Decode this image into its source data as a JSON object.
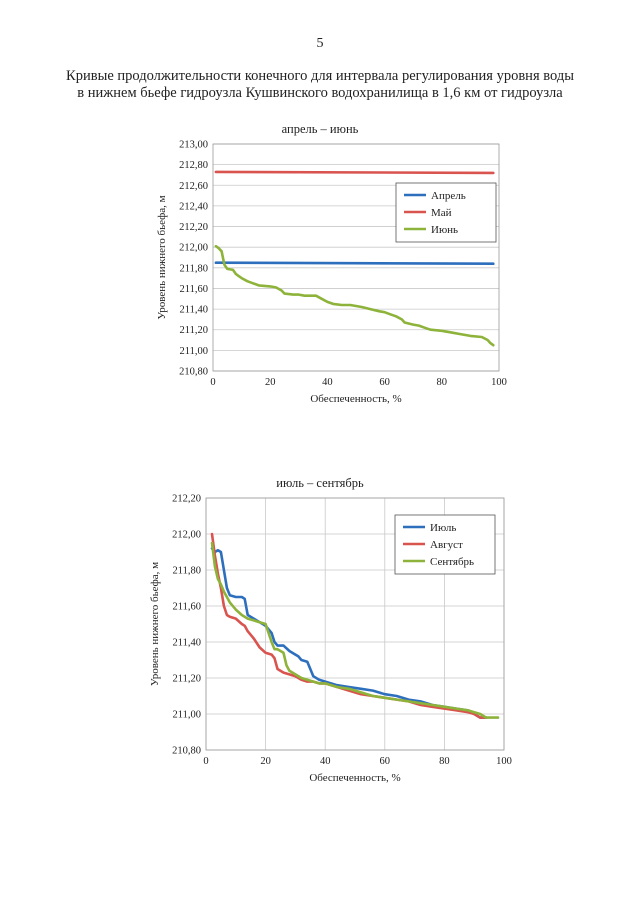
{
  "page": {
    "number": "5",
    "title_line1": "Кривые продолжительности конечного для интервала регулирования уровня воды",
    "title_line2": "в нижнем бьефе гидроузла Кушвинского водохранилища в 1,6 км от гидроузла"
  },
  "chart_data": [
    {
      "type": "line",
      "title": "апрель – июнь",
      "xlabel": "Обеспеченность, %",
      "ylabel": "Уровень нижнего бьефа, м",
      "xlim": [
        0,
        100
      ],
      "ylim": [
        210.8,
        213.0
      ],
      "x_ticks": [
        "0",
        "20",
        "40",
        "60",
        "80",
        "100"
      ],
      "y_ticks": [
        "210,80",
        "211,00",
        "211,20",
        "211,40",
        "211,60",
        "211,80",
        "212,00",
        "212,20",
        "212,40",
        "212,60",
        "212,80",
        "213,00"
      ],
      "grid": "horizontal",
      "legend_position": "right",
      "series": [
        {
          "name": "Апрель",
          "color": "#2e6fbd",
          "x": [
            1,
            98
          ],
          "y": [
            211.85,
            211.84
          ]
        },
        {
          "name": "Май",
          "color": "#d9534f",
          "x": [
            1,
            98
          ],
          "y": [
            212.73,
            212.72
          ]
        },
        {
          "name": "Июнь",
          "color": "#8db33a",
          "x": [
            1,
            2,
            3,
            4,
            5,
            7,
            8,
            9,
            10,
            12,
            14,
            16,
            20,
            22,
            24,
            25,
            28,
            30,
            32,
            36,
            38,
            40,
            42,
            45,
            48,
            50,
            52,
            55,
            58,
            60,
            62,
            64,
            66,
            67,
            70,
            72,
            74,
            76,
            80,
            84,
            86,
            88,
            90,
            94,
            96,
            97,
            98
          ],
          "y": [
            212.01,
            211.99,
            211.96,
            211.83,
            211.79,
            211.78,
            211.74,
            211.72,
            211.7,
            211.67,
            211.65,
            211.63,
            211.62,
            211.61,
            211.58,
            211.55,
            211.54,
            211.54,
            211.53,
            211.53,
            211.5,
            211.47,
            211.45,
            211.44,
            211.44,
            211.43,
            211.42,
            211.4,
            211.38,
            211.37,
            211.35,
            211.33,
            211.3,
            211.27,
            211.25,
            211.24,
            211.22,
            211.2,
            211.19,
            211.17,
            211.16,
            211.15,
            211.14,
            211.13,
            211.1,
            211.07,
            211.05
          ]
        }
      ]
    },
    {
      "type": "line",
      "title": "июль – сентябрь",
      "xlabel": "Обеспеченность, %",
      "ylabel": "Уровень нижнего бьефа, м",
      "xlim": [
        0,
        100
      ],
      "ylim": [
        210.8,
        212.2
      ],
      "x_ticks": [
        "0",
        "20",
        "40",
        "60",
        "80",
        "100"
      ],
      "y_ticks": [
        "210,80",
        "211,00",
        "211,20",
        "211,40",
        "211,60",
        "211,80",
        "212,00",
        "212,20"
      ],
      "grid": "both",
      "legend_position": "top-right",
      "series": [
        {
          "name": "Июль",
          "color": "#2e6fbd",
          "x": [
            2,
            3,
            4,
            5,
            6,
            7,
            8,
            10,
            12,
            13,
            14,
            16,
            18,
            20,
            22,
            23,
            24,
            26,
            28,
            30,
            31,
            32,
            34,
            35,
            36,
            38,
            40,
            44,
            48,
            52,
            56,
            60,
            64,
            68,
            72,
            76,
            80,
            84,
            88,
            90,
            92,
            94
          ],
          "y": [
            211.92,
            211.9,
            211.91,
            211.9,
            211.8,
            211.7,
            211.66,
            211.65,
            211.65,
            211.64,
            211.55,
            211.53,
            211.51,
            211.49,
            211.45,
            211.4,
            211.38,
            211.38,
            211.35,
            211.33,
            211.32,
            211.3,
            211.29,
            211.25,
            211.21,
            211.19,
            211.18,
            211.16,
            211.15,
            211.14,
            211.13,
            211.11,
            211.1,
            211.08,
            211.07,
            211.05,
            211.04,
            211.03,
            211.02,
            211.0,
            210.98,
            210.98
          ]
        },
        {
          "name": "Август",
          "color": "#d9534f",
          "x": [
            2,
            3,
            4,
            5,
            6,
            7,
            8,
            10,
            12,
            13,
            14,
            16,
            18,
            20,
            22,
            23,
            24,
            26,
            28,
            30,
            32,
            34,
            36,
            38,
            40,
            44,
            48,
            52,
            56,
            60,
            64,
            68,
            72,
            76,
            80,
            84,
            88,
            90,
            92,
            94
          ],
          "y": [
            212.0,
            211.88,
            211.78,
            211.7,
            211.6,
            211.55,
            211.54,
            211.53,
            211.5,
            211.49,
            211.46,
            211.42,
            211.37,
            211.34,
            211.33,
            211.31,
            211.25,
            211.23,
            211.22,
            211.21,
            211.19,
            211.18,
            211.18,
            211.17,
            211.17,
            211.15,
            211.13,
            211.11,
            211.1,
            211.09,
            211.08,
            211.07,
            211.05,
            211.04,
            211.03,
            211.02,
            211.01,
            211.0,
            210.98,
            210.98
          ]
        },
        {
          "name": "Сентябрь",
          "color": "#8db33a",
          "x": [
            2,
            3,
            4,
            5,
            6,
            8,
            10,
            12,
            14,
            16,
            18,
            20,
            21,
            22,
            23,
            24,
            26,
            27,
            28,
            30,
            32,
            34,
            36,
            38,
            40,
            44,
            48,
            52,
            56,
            60,
            64,
            68,
            72,
            76,
            80,
            84,
            88,
            90,
            92,
            94,
            96,
            98
          ],
          "y": [
            211.95,
            211.82,
            211.75,
            211.72,
            211.68,
            211.62,
            211.58,
            211.55,
            211.53,
            211.52,
            211.51,
            211.5,
            211.45,
            211.4,
            211.36,
            211.36,
            211.34,
            211.27,
            211.24,
            211.22,
            211.2,
            211.19,
            211.18,
            211.17,
            211.17,
            211.15,
            211.14,
            211.12,
            211.1,
            211.09,
            211.08,
            211.07,
            211.06,
            211.05,
            211.04,
            211.03,
            211.02,
            211.01,
            211.0,
            210.98,
            210.98,
            210.98
          ]
        }
      ]
    }
  ]
}
